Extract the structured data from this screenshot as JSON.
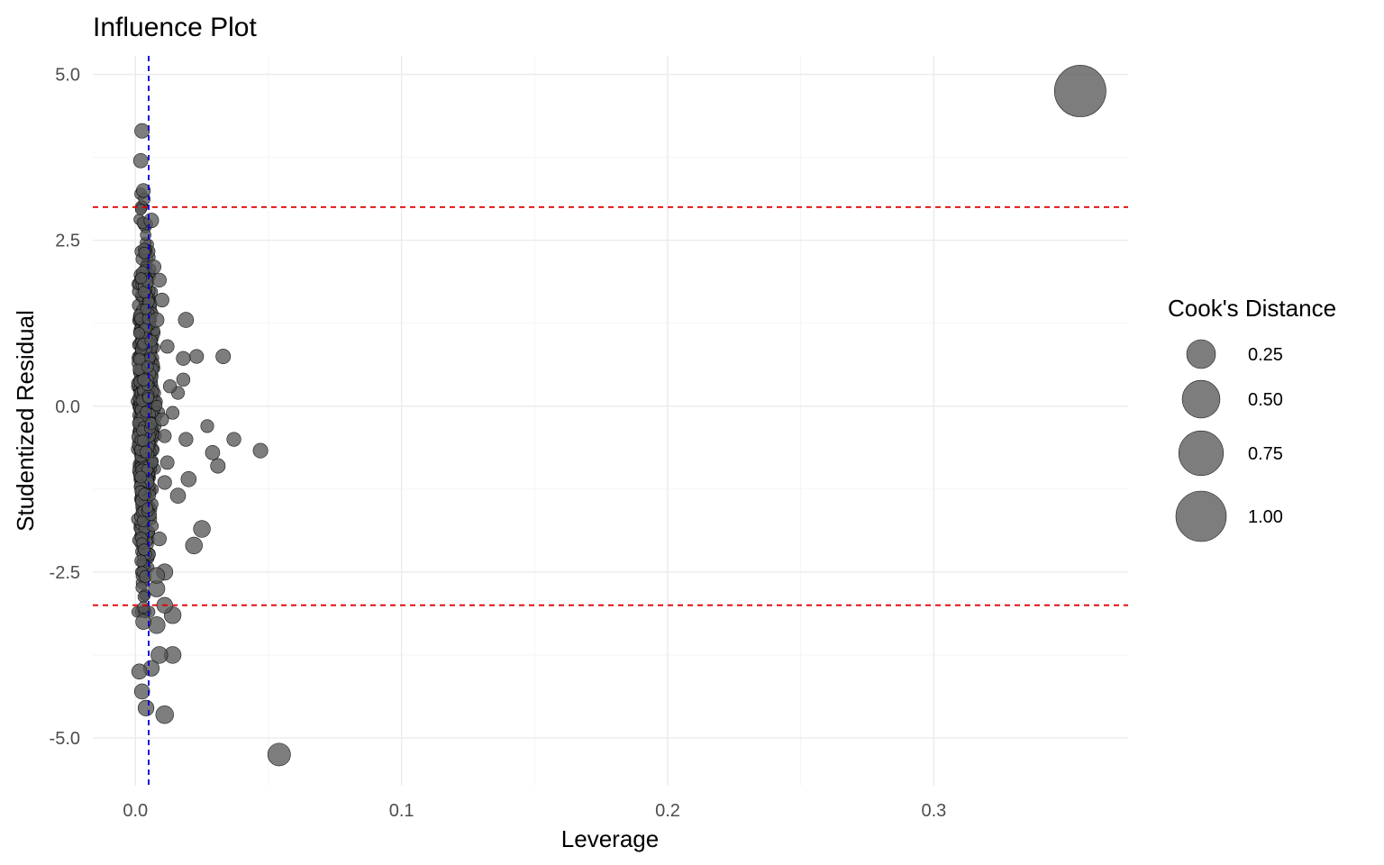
{
  "chart_data": {
    "type": "scatter",
    "title": "Influence Plot",
    "xlabel": "Leverage",
    "ylabel": "Studentized Residual",
    "xlim": [
      -0.016,
      0.373
    ],
    "ylim": [
      -5.72,
      5.28
    ],
    "x_ticks": [
      0.0,
      0.1,
      0.2,
      0.3
    ],
    "x_tick_labels": [
      "0.0",
      "0.1",
      "0.2",
      "0.3"
    ],
    "y_ticks": [
      -5.0,
      -2.5,
      0.0,
      2.5,
      5.0
    ],
    "y_tick_labels": [
      "-5.0",
      "-2.5",
      "0.0",
      "2.5",
      "5.0"
    ],
    "grid": true,
    "point_color": "#595959",
    "point_stroke": "#000000",
    "reference_lines": [
      {
        "orientation": "horizontal",
        "value": 3,
        "color": "#e00000",
        "style": "dashed"
      },
      {
        "orientation": "horizontal",
        "value": -3,
        "color": "#e00000",
        "style": "dashed"
      },
      {
        "orientation": "vertical",
        "value": 0.005,
        "color": "#0000cc",
        "style": "dashed"
      }
    ],
    "legend": {
      "title": "Cook's Distance",
      "placement": "right",
      "entries": [
        {
          "label": "0.25",
          "value": 0.25
        },
        {
          "label": "0.50",
          "value": 0.5
        },
        {
          "label": "0.75",
          "value": 0.75
        },
        {
          "label": "1.00",
          "value": 1.0
        }
      ]
    },
    "highlighted_points": [
      {
        "x": 0.355,
        "y": 4.75,
        "cooks": 1.05
      },
      {
        "x": 0.054,
        "y": -5.25,
        "cooks": 0.13
      },
      {
        "x": 0.011,
        "y": -4.65,
        "cooks": 0.06
      },
      {
        "x": 0.014,
        "y": -3.75,
        "cooks": 0.05
      },
      {
        "x": 0.009,
        "y": -3.75,
        "cooks": 0.05
      },
      {
        "x": 0.014,
        "y": -3.15,
        "cooks": 0.05
      },
      {
        "x": 0.008,
        "y": -3.3,
        "cooks": 0.05
      },
      {
        "x": 0.008,
        "y": -2.75,
        "cooks": 0.045
      },
      {
        "x": 0.011,
        "y": -2.5,
        "cooks": 0.045
      },
      {
        "x": 0.008,
        "y": -2.55,
        "cooks": 0.04
      },
      {
        "x": 0.011,
        "y": -3.0,
        "cooks": 0.04
      },
      {
        "x": 0.006,
        "y": -3.95,
        "cooks": 0.04
      },
      {
        "x": 0.004,
        "y": -4.55,
        "cooks": 0.04
      },
      {
        "x": 0.0025,
        "y": -4.3,
        "cooks": 0.035
      },
      {
        "x": 0.0015,
        "y": -4.0,
        "cooks": 0.035
      },
      {
        "x": 0.003,
        "y": -3.25,
        "cooks": 0.035
      },
      {
        "x": 0.022,
        "y": -2.1,
        "cooks": 0.05
      },
      {
        "x": 0.025,
        "y": -1.85,
        "cooks": 0.05
      },
      {
        "x": 0.02,
        "y": -1.1,
        "cooks": 0.035
      },
      {
        "x": 0.016,
        "y": -1.35,
        "cooks": 0.035
      },
      {
        "x": 0.031,
        "y": -0.9,
        "cooks": 0.03
      },
      {
        "x": 0.029,
        "y": -0.7,
        "cooks": 0.028
      },
      {
        "x": 0.047,
        "y": -0.67,
        "cooks": 0.03
      },
      {
        "x": 0.037,
        "y": -0.5,
        "cooks": 0.025
      },
      {
        "x": 0.019,
        "y": -0.5,
        "cooks": 0.025
      },
      {
        "x": 0.027,
        "y": -0.3,
        "cooks": 0.018
      },
      {
        "x": 0.033,
        "y": 0.75,
        "cooks": 0.03
      },
      {
        "x": 0.023,
        "y": 0.75,
        "cooks": 0.025
      },
      {
        "x": 0.019,
        "y": 1.3,
        "cooks": 0.035
      },
      {
        "x": 0.018,
        "y": 0.72,
        "cooks": 0.025
      },
      {
        "x": 0.018,
        "y": 0.4,
        "cooks": 0.02
      },
      {
        "x": 0.016,
        "y": 0.2,
        "cooks": 0.018
      },
      {
        "x": 0.014,
        "y": -0.1,
        "cooks": 0.018
      },
      {
        "x": 0.013,
        "y": 0.3,
        "cooks": 0.02
      },
      {
        "x": 0.012,
        "y": 0.9,
        "cooks": 0.022
      },
      {
        "x": 0.011,
        "y": -0.45,
        "cooks": 0.02
      },
      {
        "x": 0.012,
        "y": -0.85,
        "cooks": 0.022
      },
      {
        "x": 0.011,
        "y": -1.15,
        "cooks": 0.024
      },
      {
        "x": 0.01,
        "y": 1.6,
        "cooks": 0.025
      },
      {
        "x": 0.009,
        "y": 1.9,
        "cooks": 0.025
      },
      {
        "x": 0.007,
        "y": 2.1,
        "cooks": 0.025
      },
      {
        "x": 0.006,
        "y": 2.8,
        "cooks": 0.03
      },
      {
        "x": 0.003,
        "y": 3.25,
        "cooks": 0.025
      },
      {
        "x": 0.002,
        "y": 3.7,
        "cooks": 0.028
      },
      {
        "x": 0.0025,
        "y": 4.15,
        "cooks": 0.03
      },
      {
        "x": 0.008,
        "y": 1.3,
        "cooks": 0.03
      },
      {
        "x": 0.009,
        "y": -2.0,
        "cooks": 0.025
      },
      {
        "x": 0.01,
        "y": -0.2,
        "cooks": 0.02
      }
    ]
  }
}
